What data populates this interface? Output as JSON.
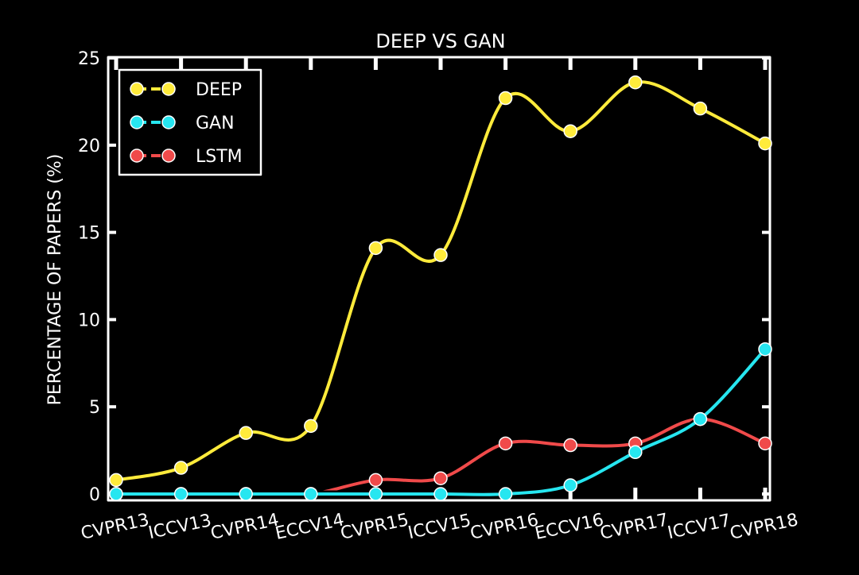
{
  "chart_data": {
    "type": "line",
    "title": "DEEP VS GAN",
    "xlabel": "",
    "ylabel": "PERCENTAGE OF PAPERS (%)",
    "categories": [
      "CVPR13",
      "ICCV13",
      "CVPR14",
      "ECCV14",
      "CVPR15",
      "ICCV15",
      "CVPR16",
      "ECCV16",
      "CVPR17",
      "ICCV17",
      "CVPR18"
    ],
    "ylim": [
      0,
      25
    ],
    "yticks": [
      0,
      5,
      10,
      15,
      20,
      25
    ],
    "grid": false,
    "legend_position": "top-left",
    "series": [
      {
        "name": "DEEP",
        "color": "#ffeb3b",
        "values": [
          0.8,
          1.5,
          3.5,
          3.9,
          14.1,
          13.7,
          22.7,
          20.8,
          23.6,
          22.1,
          20.1
        ]
      },
      {
        "name": "GAN",
        "color": "#26e6f0",
        "values": [
          0.0,
          0.0,
          0.0,
          0.0,
          0.0,
          0.0,
          0.0,
          0.5,
          2.4,
          4.3,
          8.3
        ]
      },
      {
        "name": "LSTM",
        "color": "#f04a4a",
        "values": [
          0.0,
          0.0,
          0.0,
          0.0,
          0.8,
          0.9,
          2.9,
          2.8,
          2.9,
          4.3,
          2.9
        ]
      }
    ]
  }
}
